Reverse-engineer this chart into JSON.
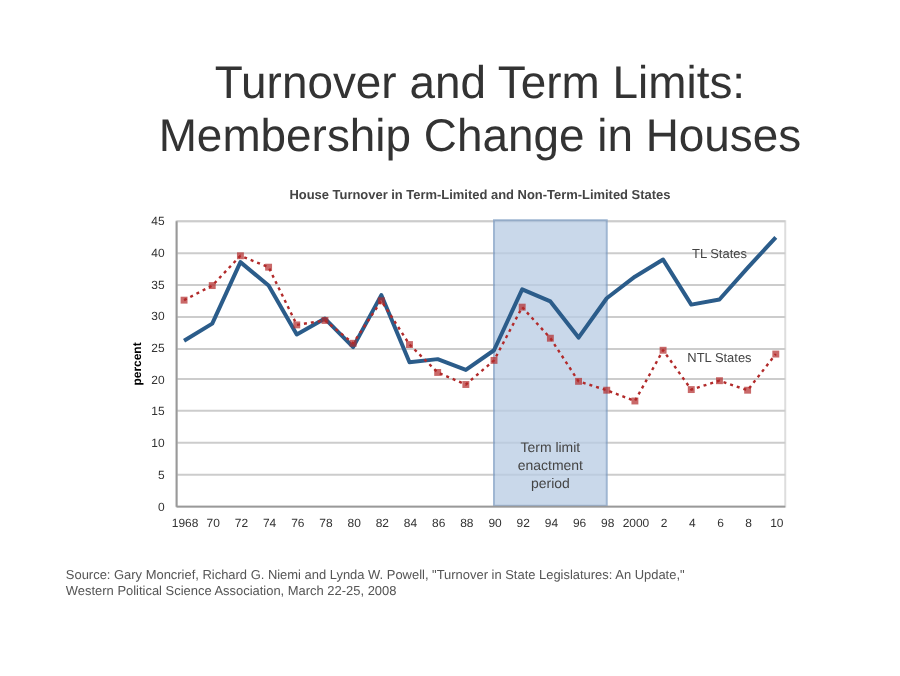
{
  "chart_data": {
    "type": "line",
    "title": "Turnover and Term Limits:\nMembership Change in Houses",
    "subtitle": "House Turnover in Term-Limited and Non-Term-Limited States",
    "ylabel": "percent",
    "categories": [
      "1968",
      "70",
      "72",
      "74",
      "76",
      "78",
      "80",
      "82",
      "84",
      "86",
      "88",
      "90",
      "92",
      "94",
      "96",
      "98",
      "2000",
      "2",
      "4",
      "6",
      "8",
      "10"
    ],
    "series": [
      {
        "name": "TL States",
        "color": "#2b5c8a",
        "marker": "none",
        "line_style": "solid",
        "values": [
          26,
          28.7,
          38.4,
          34.7,
          27,
          29.5,
          25,
          33.2,
          22.6,
          23.1,
          21.4,
          24.5,
          34.1,
          32.2,
          26.5,
          32.7,
          36.1,
          38.8,
          31.7,
          32.5,
          37.5,
          42.3
        ]
      },
      {
        "name": "NTL States",
        "color": "#b22a2a",
        "marker": "square",
        "line_style": "dotted",
        "values": [
          32.4,
          34.7,
          39.4,
          37.6,
          28.5,
          29.2,
          25.6,
          32.3,
          25.4,
          21,
          19.1,
          22.9,
          31.3,
          26.4,
          19.6,
          18.2,
          16.5,
          24.5,
          18.3,
          19.7,
          18.2,
          23.9
        ]
      }
    ],
    "ylim": [
      0,
      45
    ],
    "yticks": [
      0,
      5,
      10,
      15,
      20,
      25,
      30,
      35,
      40,
      45
    ],
    "grid": "y",
    "legend": false,
    "bands": [
      {
        "axis": "x",
        "from": "90",
        "to": "98",
        "label": "Term limit\nenactment\nperiod",
        "color": "#b8cce4"
      }
    ],
    "annotations": [
      "Source: Gary Moncrief, Richard G. Niemi and Lynda W. Powell, \"Turnover in State Legislatures: An Update,\"\nWestern Political Science Association, March 22-25, 2008"
    ]
  }
}
